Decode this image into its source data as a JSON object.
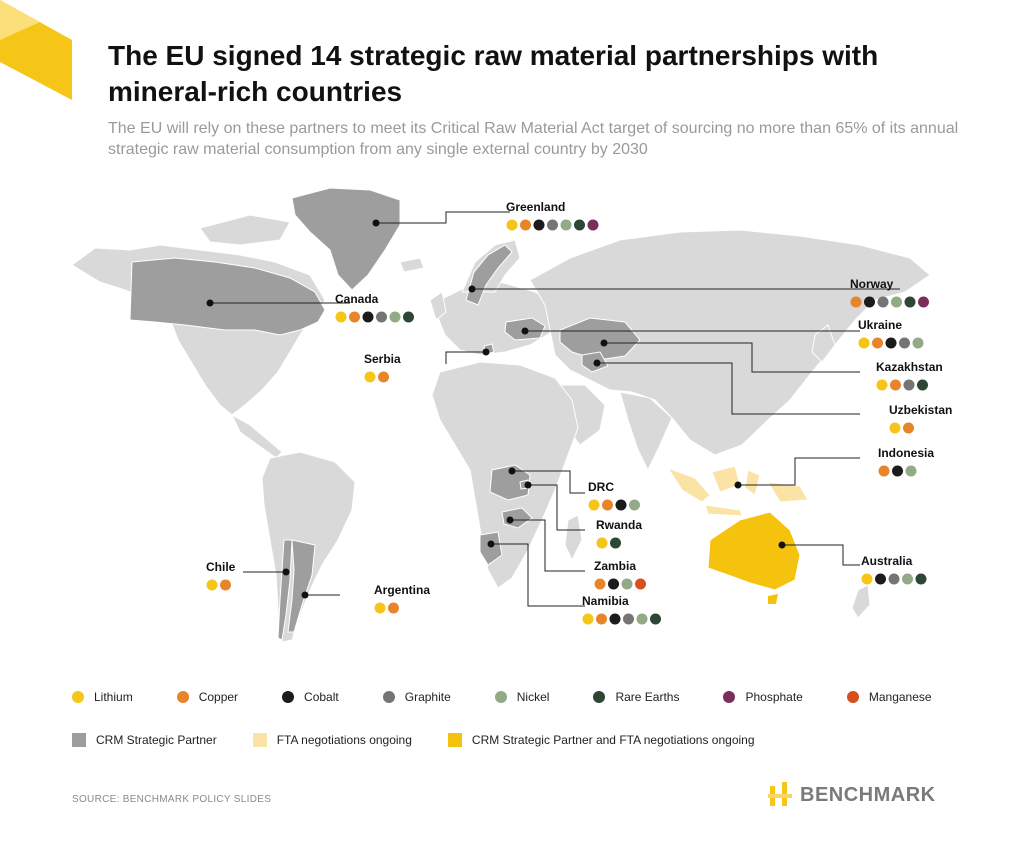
{
  "title": "The EU signed 14 strategic raw material partnerships with mineral-rich countries",
  "subtitle": "The EU will rely on these partners to meet its Critical Raw Material Act target of sourcing no more than 65% of its annual strategic raw material consumption from any single external country by 2030",
  "colors": {
    "accent": "#F5C518",
    "Lithium": "#F5C518",
    "Copper": "#E8852A",
    "Cobalt": "#1B1B1B",
    "Graphite": "#757575",
    "Nickel": "#93AA86",
    "Rare Earths": "#2D4734",
    "Phosphate": "#7A2F5A",
    "Manganese": "#D74F1C",
    "land": "#D9D9D9",
    "partner": "#9E9E9E",
    "fta": "#FBE3A6",
    "both": "#F5C20D"
  },
  "minerals": [
    "Lithium",
    "Copper",
    "Cobalt",
    "Graphite",
    "Nickel",
    "Rare Earths",
    "Phosphate",
    "Manganese"
  ],
  "partners": [
    {
      "name": "Greenland",
      "status": "partner",
      "minerals": [
        "Lithium",
        "Copper",
        "Cobalt",
        "Graphite",
        "Nickel",
        "Rare Earths",
        "Phosphate"
      ]
    },
    {
      "name": "Canada",
      "status": "partner",
      "minerals": [
        "Lithium",
        "Copper",
        "Cobalt",
        "Graphite",
        "Nickel",
        "Rare Earths"
      ]
    },
    {
      "name": "Serbia",
      "status": "partner",
      "minerals": [
        "Lithium",
        "Copper"
      ]
    },
    {
      "name": "Norway",
      "status": "partner",
      "minerals": [
        "Copper",
        "Cobalt",
        "Graphite",
        "Nickel",
        "Rare Earths",
        "Phosphate"
      ]
    },
    {
      "name": "Ukraine",
      "status": "partner",
      "minerals": [
        "Lithium",
        "Copper",
        "Cobalt",
        "Graphite",
        "Nickel"
      ]
    },
    {
      "name": "Kazakhstan",
      "status": "partner",
      "minerals": [
        "Lithium",
        "Copper",
        "Graphite",
        "Rare Earths"
      ]
    },
    {
      "name": "Uzbekistan",
      "status": "partner",
      "minerals": [
        "Lithium",
        "Copper"
      ]
    },
    {
      "name": "Indonesia",
      "status": "fta",
      "minerals": [
        "Copper",
        "Cobalt",
        "Nickel"
      ]
    },
    {
      "name": "DRC",
      "status": "partner",
      "minerals": [
        "Lithium",
        "Copper",
        "Cobalt",
        "Nickel"
      ]
    },
    {
      "name": "Rwanda",
      "status": "partner",
      "minerals": [
        "Lithium",
        "Rare Earths"
      ]
    },
    {
      "name": "Zambia",
      "status": "partner",
      "minerals": [
        "Copper",
        "Cobalt",
        "Nickel",
        "Manganese"
      ]
    },
    {
      "name": "Namibia",
      "status": "partner",
      "minerals": [
        "Lithium",
        "Copper",
        "Cobalt",
        "Graphite",
        "Nickel",
        "Rare Earths"
      ]
    },
    {
      "name": "Chile",
      "status": "partner",
      "minerals": [
        "Lithium",
        "Copper"
      ]
    },
    {
      "name": "Argentina",
      "status": "partner",
      "minerals": [
        "Lithium",
        "Copper"
      ]
    },
    {
      "name": "Australia",
      "status": "both",
      "minerals": [
        "Lithium",
        "Cobalt",
        "Graphite",
        "Nickel",
        "Rare Earths"
      ]
    }
  ],
  "status_legend": [
    {
      "key": "partner",
      "label": "CRM Strategic Partner"
    },
    {
      "key": "fta",
      "label": "FTA negotiations ongoing"
    },
    {
      "key": "both",
      "label": "CRM Strategic Partner and FTA negotiations ongoing"
    }
  ],
  "source": "SOURCE: BENCHMARK POLICY SLIDES",
  "logo": "BENCHMARK"
}
